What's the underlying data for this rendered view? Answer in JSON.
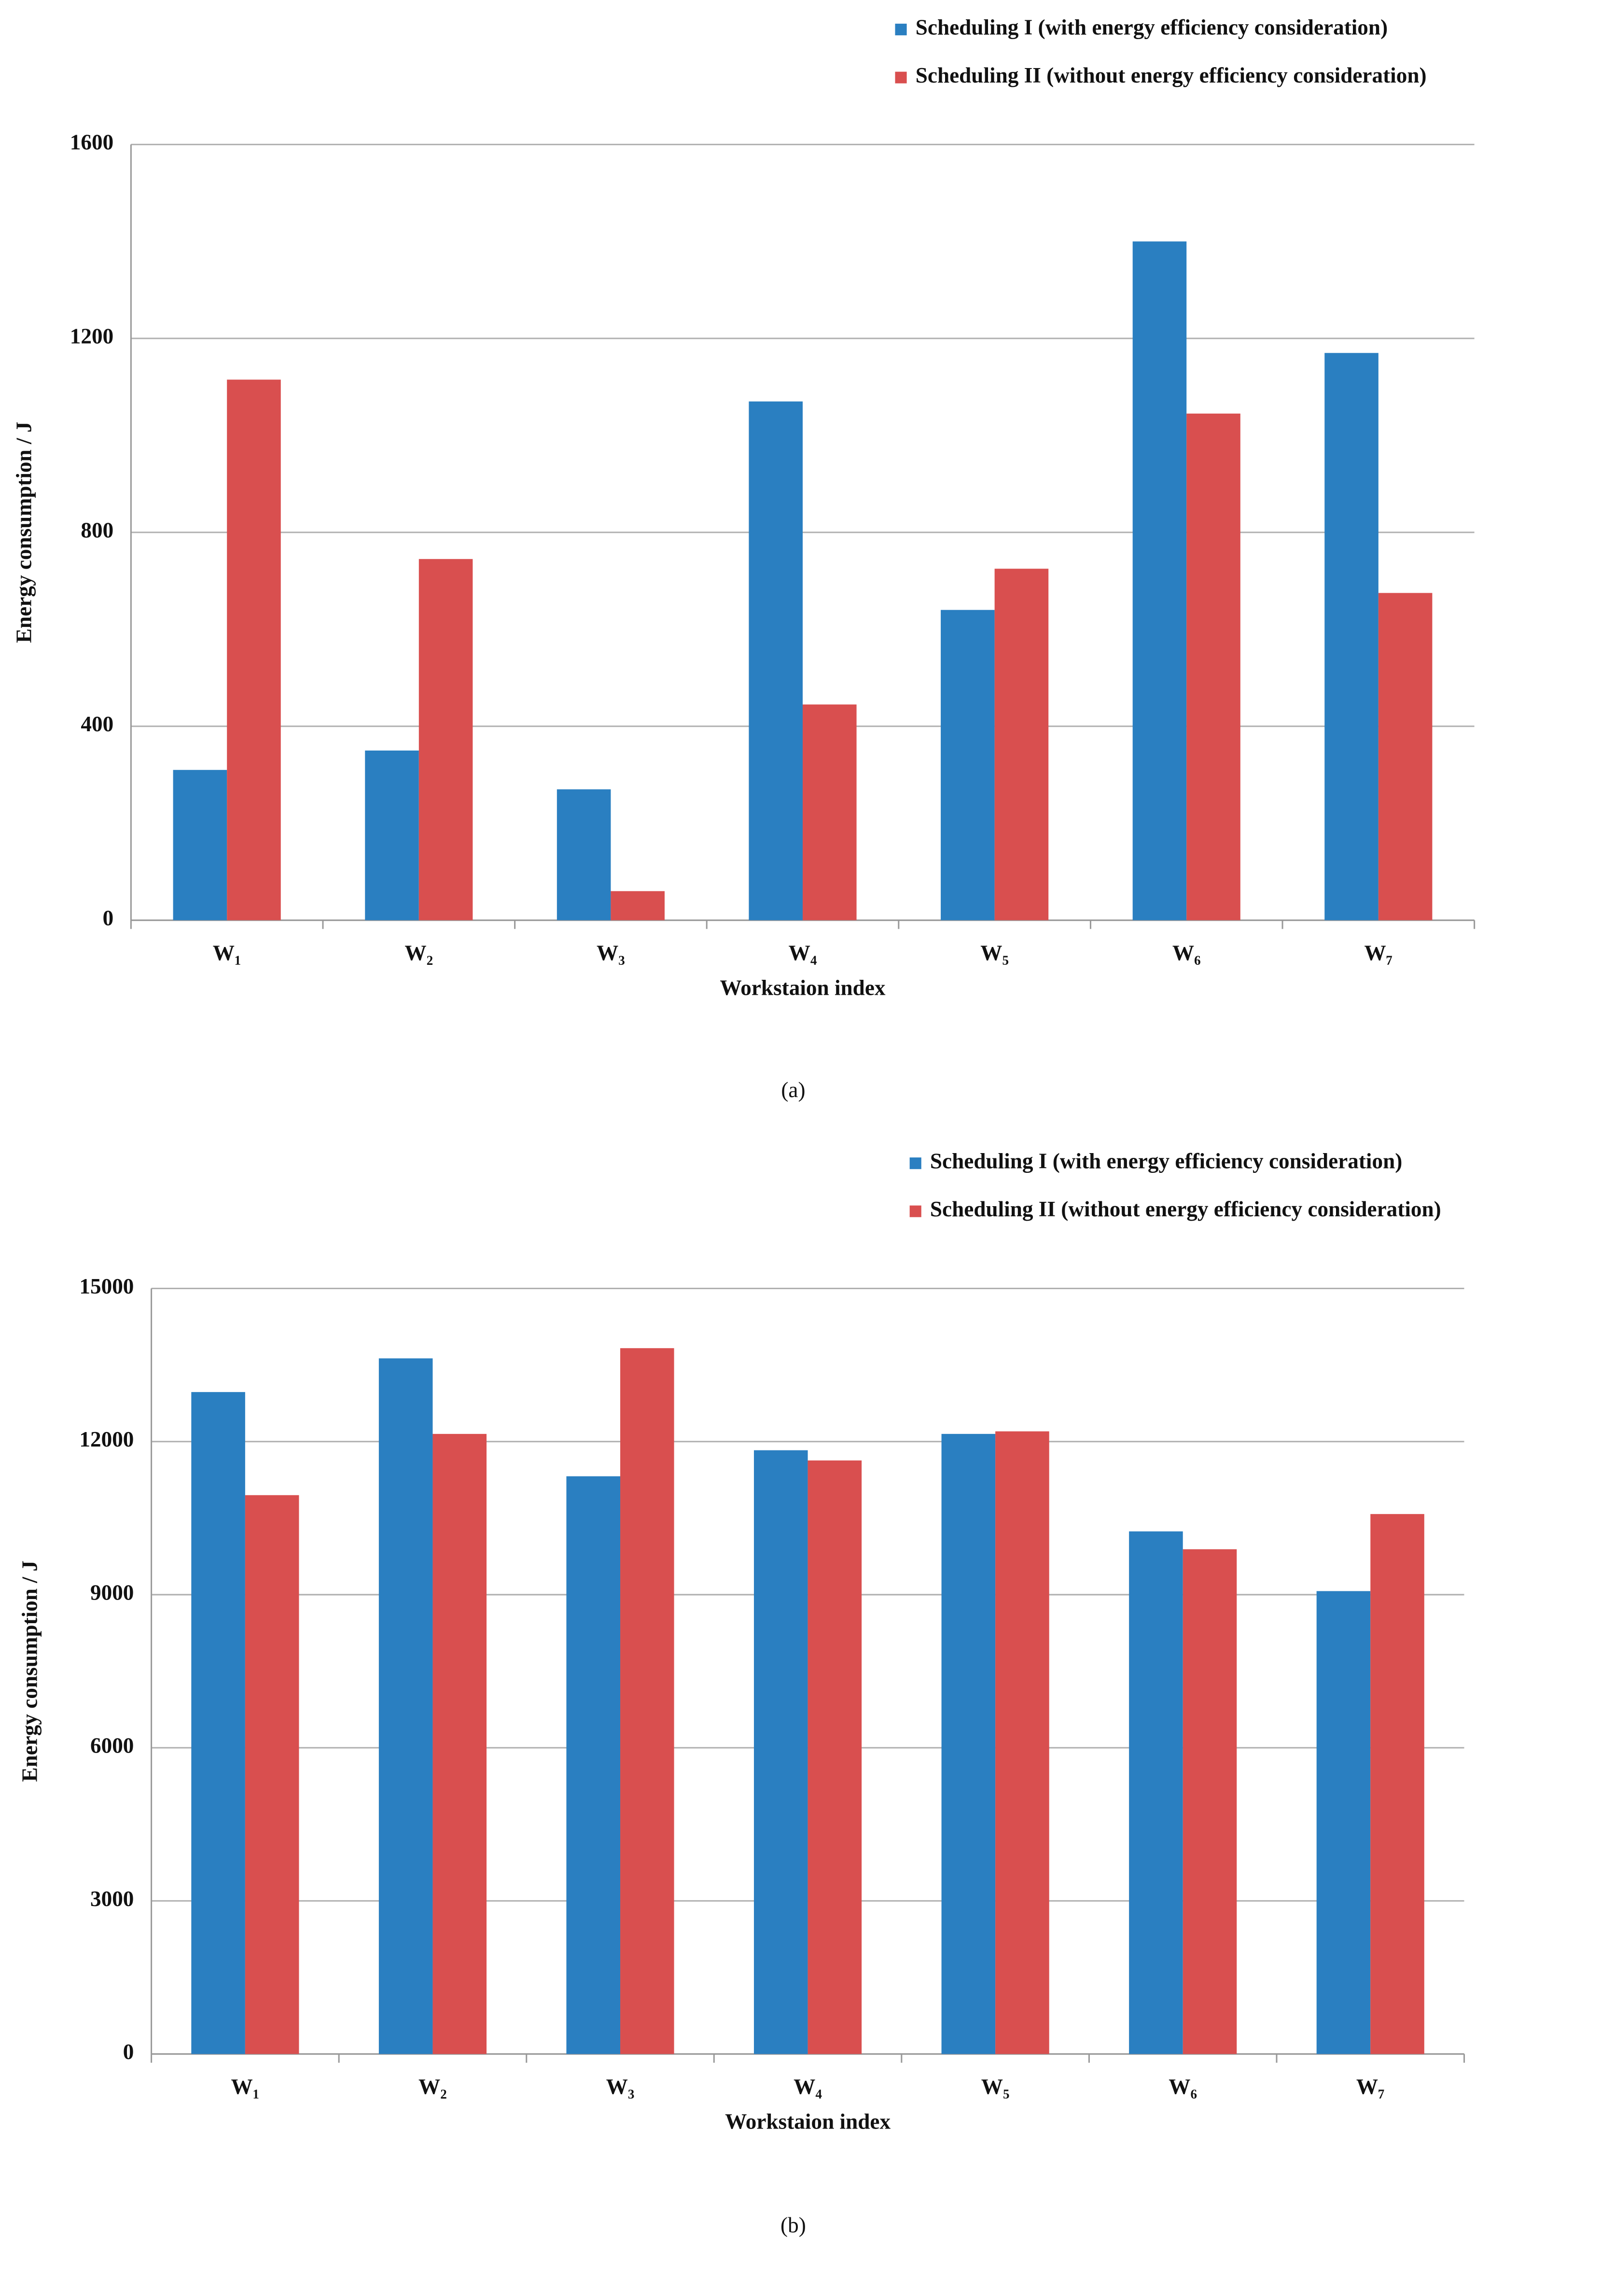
{
  "chart_data": [
    {
      "type": "bar",
      "caption": "(a)",
      "xlabel": "Workstaion index",
      "ylabel": "Energy consumption / J",
      "categories": [
        "W₁",
        "W₂",
        "W₃",
        "W₄",
        "W₅",
        "W₆",
        "W₇"
      ],
      "series": [
        {
          "name": "Scheduling I (with energy efficiency consideration)",
          "color": "#2a7fc1",
          "values": [
            310,
            350,
            270,
            1070,
            640,
            1400,
            1170
          ]
        },
        {
          "name": "Scheduling II (without energy efficiency consideration)",
          "color": "#d94f4f",
          "values": [
            1115,
            745,
            60,
            445,
            725,
            1045,
            675
          ]
        }
      ],
      "ylim": [
        0,
        1600
      ],
      "yticks": [
        0,
        400,
        800,
        1200,
        1600
      ],
      "grid": true,
      "legend": "top-right"
    },
    {
      "type": "bar",
      "caption": "(b)",
      "xlabel": "Workstaion index",
      "ylabel": "Energy consumption / J",
      "categories": [
        "W₁",
        "W₂",
        "W₃",
        "W₄",
        "W₅",
        "W₆",
        "W₇"
      ],
      "series": [
        {
          "name": "Scheduling I (with energy efficiency consideration)",
          "color": "#2a7fc1",
          "values": [
            12970,
            13630,
            11320,
            11830,
            12150,
            10240,
            9070
          ]
        },
        {
          "name": "Scheduling II (without energy efficiency consideration)",
          "color": "#d94f4f",
          "values": [
            10950,
            12150,
            13830,
            11630,
            12200,
            9890,
            10580
          ]
        }
      ],
      "ylim": [
        0,
        15000
      ],
      "yticks": [
        0,
        3000,
        6000,
        9000,
        12000,
        15000
      ],
      "grid": true,
      "legend": "top-right"
    }
  ]
}
